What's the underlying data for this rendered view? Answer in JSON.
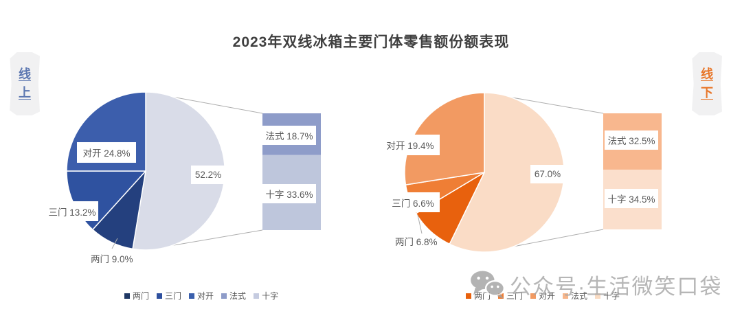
{
  "title": "2023年双线冰箱主要门体零售额份额表现",
  "badge_left": "线上",
  "badge_right": "线下",
  "watermark_text": "公众号·生活微笑口袋",
  "legend_labels": [
    "两门",
    "三门",
    "对开",
    "法式",
    "十字"
  ],
  "online": {
    "callout_duikai": "对开 24.8%",
    "callout_sanmen": "三门 13.2%",
    "callout_liangmen": "两门 9.0%",
    "callout_combined": "52.2%",
    "callout_fashi": "法式 18.7%",
    "callout_shizi": "十字 33.6%",
    "colors": {
      "combined": "#D9DCE8",
      "liangmen": "#24407E",
      "sanmen": "#2F52A0",
      "duikai": "#3C5EAC",
      "fashi": "#8E9CC9",
      "shizi": "#BEC6DC",
      "legend": [
        "#1F3864",
        "#2E509E",
        "#3A5FAC",
        "#8E9CC9",
        "#C5CBE0"
      ],
      "badge_text": "#5C77B1"
    }
  },
  "offline": {
    "callout_duikai": "对开 19.4%",
    "callout_sanmen": "三门 6.6%",
    "callout_liangmen": "两门 6.8%",
    "callout_combined": "67.0%",
    "callout_fashi": "法式 32.5%",
    "callout_shizi": "十字 34.5%",
    "colors": {
      "combined": "#FADCC6",
      "liangmen": "#E8610D",
      "sanmen": "#EF7E35",
      "duikai": "#F29A62",
      "fashi": "#F8B78E",
      "shizi": "#FBDFCC",
      "legend": [
        "#E8610D",
        "#EF7E35",
        "#F29A62",
        "#F7B68B",
        "#FADCC3"
      ],
      "badge_text": "#E87629"
    }
  },
  "chart_data": [
    {
      "type": "pie",
      "subtype": "bar-of-pie",
      "channel": "线上",
      "title": "2023年双线冰箱主要门体零售额份额表现（线上）",
      "categories": [
        "两门",
        "三门",
        "对开",
        "法式",
        "十字"
      ],
      "values": [
        9.0,
        13.2,
        24.8,
        18.7,
        33.6
      ],
      "combined_slice": {
        "members": [
          "法式",
          "十字"
        ],
        "value": 52.2,
        "label": "52.2%"
      },
      "legend_position": "bottom"
    },
    {
      "type": "pie",
      "subtype": "bar-of-pie",
      "channel": "线下",
      "title": "2023年双线冰箱主要门体零售额份额表现（线下）",
      "categories": [
        "两门",
        "三门",
        "对开",
        "法式",
        "十字"
      ],
      "values": [
        6.8,
        6.6,
        19.4,
        32.5,
        34.5
      ],
      "combined_slice": {
        "members": [
          "法式",
          "十字"
        ],
        "value": 67.0,
        "label": "67.0%"
      },
      "legend_position": "bottom"
    }
  ]
}
